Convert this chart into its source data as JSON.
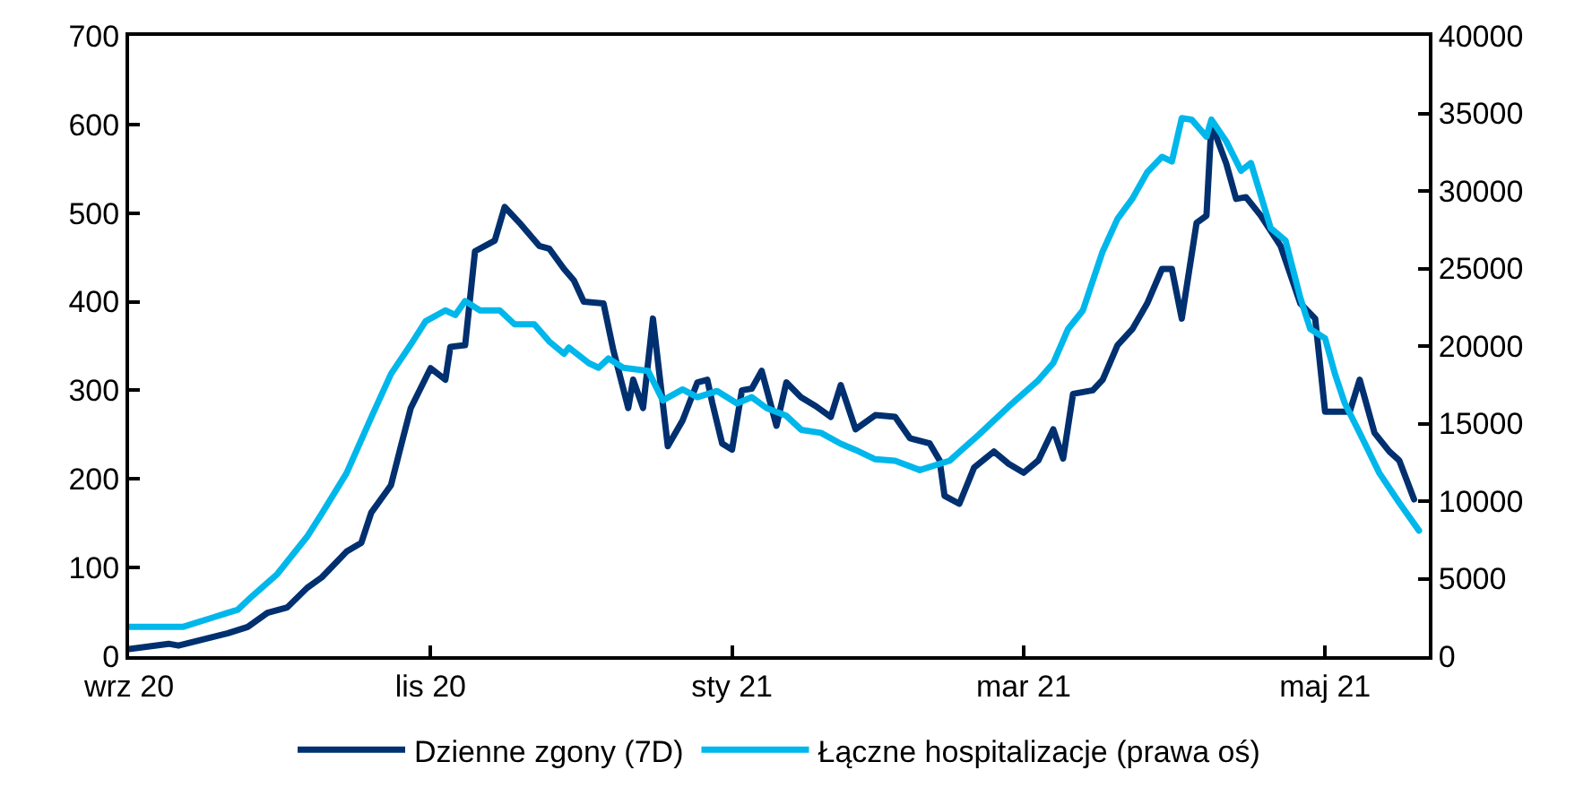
{
  "chart_data": {
    "type": "line",
    "series": [
      {
        "name": "Dzienne zgony (7D)",
        "color": "#00306f",
        "x": [
          "2020-09-01",
          "2020-09-09",
          "2020-09-11",
          "2020-09-21",
          "2020-09-25",
          "2020-09-29",
          "2020-10-03",
          "2020-10-07",
          "2020-10-10",
          "2020-10-15",
          "2020-10-18",
          "2020-10-20",
          "2020-10-24",
          "2020-10-26",
          "2020-10-28",
          "2020-11-01",
          "2020-11-04",
          "2020-11-05",
          "2020-11-08",
          "2020-11-10",
          "2020-11-14",
          "2020-11-16",
          "2020-11-19",
          "2020-11-23",
          "2020-11-25",
          "2020-11-28",
          "2020-11-30",
          "2020-12-02",
          "2020-12-06",
          "2020-12-08",
          "2020-12-11",
          "2020-12-12",
          "2020-12-14",
          "2020-12-16",
          "2020-12-19",
          "2020-12-22",
          "2020-12-25",
          "2020-12-27",
          "2020-12-28",
          "2020-12-30",
          "2021-01-01",
          "2021-01-03",
          "2021-01-05",
          "2021-01-07",
          "2021-01-10",
          "2021-01-12",
          "2021-01-15",
          "2021-01-18",
          "2021-01-21",
          "2021-01-23",
          "2021-01-26",
          "2021-01-30",
          "2021-02-03",
          "2021-02-06",
          "2021-02-10",
          "2021-02-12",
          "2021-02-13",
          "2021-02-16",
          "2021-02-19",
          "2021-02-23",
          "2021-02-26",
          "2021-03-01",
          "2021-03-04",
          "2021-03-07",
          "2021-03-09",
          "2021-03-11",
          "2021-03-15",
          "2021-03-17",
          "2021-03-20",
          "2021-03-23",
          "2021-03-26",
          "2021-03-29",
          "2021-03-31",
          "2021-04-02",
          "2021-04-05",
          "2021-04-07",
          "2021-04-08",
          "2021-04-11",
          "2021-04-13",
          "2021-04-15",
          "2021-04-18",
          "2021-04-22",
          "2021-04-26",
          "2021-04-29",
          "2021-05-01",
          "2021-05-06",
          "2021-05-08",
          "2021-05-11",
          "2021-05-14",
          "2021-05-16",
          "2021-05-19"
        ],
        "values": [
          8,
          14,
          12,
          26,
          33,
          49,
          55,
          77,
          89,
          118,
          128,
          162,
          193,
          237,
          280,
          325,
          312,
          349,
          351,
          457,
          469,
          507,
          489,
          463,
          460,
          437,
          424,
          400,
          398,
          345,
          280,
          312,
          280,
          381,
          237,
          266,
          309,
          312,
          286,
          240,
          233,
          300,
          302,
          322,
          260,
          309,
          292,
          282,
          270,
          306,
          256,
          272,
          270,
          246,
          240,
          221,
          181,
          172,
          213,
          231,
          217,
          207,
          221,
          256,
          223,
          296,
          300,
          312,
          351,
          369,
          398,
          437,
          437,
          381,
          489,
          497,
          601,
          556,
          516,
          518,
          497,
          463,
          398,
          381,
          276,
          276,
          312,
          252,
          231,
          221,
          177
        ]
      },
      {
        "name": "Łączne hospitalizacje (prawa oś)",
        "color": "#00b7eb",
        "axis": "y2",
        "x": [
          "2020-09-01",
          "2020-09-12",
          "2020-09-18",
          "2020-09-23",
          "2020-09-26",
          "2020-10-01",
          "2020-10-07",
          "2020-10-10",
          "2020-10-15",
          "2020-10-20",
          "2020-10-24",
          "2020-10-28",
          "2020-10-31",
          "2020-11-04",
          "2020-11-06",
          "2020-11-08",
          "2020-11-11",
          "2020-11-15",
          "2020-11-18",
          "2020-11-22",
          "2020-11-25",
          "2020-11-28",
          "2020-11-29",
          "2020-12-03",
          "2020-12-05",
          "2020-12-07",
          "2020-12-10",
          "2020-12-15",
          "2020-12-18",
          "2020-12-22",
          "2020-12-25",
          "2020-12-29",
          "2021-01-02",
          "2021-01-05",
          "2021-01-08",
          "2021-01-12",
          "2021-01-15",
          "2021-01-19",
          "2021-01-23",
          "2021-01-26",
          "2021-01-30",
          "2021-02-03",
          "2021-02-08",
          "2021-02-14",
          "2021-02-20",
          "2021-02-26",
          "2021-03-04",
          "2021-03-07",
          "2021-03-10",
          "2021-03-13",
          "2021-03-17",
          "2021-03-20",
          "2021-03-23",
          "2021-03-26",
          "2021-03-29",
          "2021-03-31",
          "2021-04-02",
          "2021-04-04",
          "2021-04-07",
          "2021-04-08",
          "2021-04-11",
          "2021-04-14",
          "2021-04-16",
          "2021-04-20",
          "2021-04-23",
          "2021-04-26",
          "2021-04-28",
          "2021-05-01",
          "2021-05-03",
          "2021-05-05",
          "2021-05-08",
          "2021-05-12",
          "2021-05-16",
          "2021-05-20"
        ],
        "values": [
          1900,
          1900,
          2500,
          3000,
          3900,
          5300,
          7700,
          9200,
          11800,
          15400,
          18200,
          20100,
          21600,
          22300,
          22000,
          22900,
          22300,
          22300,
          21400,
          21400,
          20300,
          19500,
          19900,
          18900,
          18600,
          19200,
          18600,
          18400,
          16500,
          17200,
          16700,
          17100,
          16300,
          16700,
          16000,
          15500,
          14600,
          14400,
          13700,
          13300,
          12700,
          12600,
          12000,
          12600,
          14300,
          16100,
          17800,
          18900,
          21100,
          22300,
          26100,
          28200,
          29500,
          31200,
          32200,
          31900,
          34700,
          34600,
          33500,
          34600,
          33200,
          31300,
          31800,
          27600,
          26800,
          23100,
          21100,
          20500,
          18200,
          16300,
          14400,
          11800,
          9900,
          8100
        ]
      }
    ],
    "xlim": [
      "2020-09-01",
      "2021-05-22"
    ],
    "xticks": [
      {
        "value": "2020-09-01",
        "label": "wrz 20"
      },
      {
        "value": "2020-11-01",
        "label": "lis 20"
      },
      {
        "value": "2021-01-01",
        "label": "sty 21"
      },
      {
        "value": "2021-03-01",
        "label": "mar 21"
      },
      {
        "value": "2021-05-01",
        "label": "maj 21"
      }
    ],
    "ylim": [
      0,
      700
    ],
    "yticks": [
      0,
      100,
      200,
      300,
      400,
      500,
      600,
      700
    ],
    "y2lim": [
      0,
      40000
    ],
    "y2ticks": [
      0,
      5000,
      10000,
      15000,
      20000,
      25000,
      30000,
      35000,
      40000
    ],
    "legend": "bottom",
    "marker": "none",
    "line_style": "solid"
  }
}
